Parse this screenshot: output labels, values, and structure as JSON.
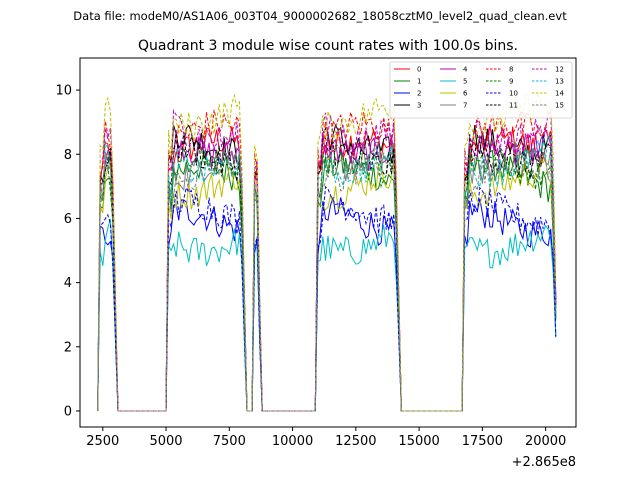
{
  "chart_data": {
    "type": "line",
    "suptitle": "Data file: modeM0/AS1A06_003T04_9000002682_18058cztM0_level2_quad_clean.evt",
    "title": "Quadrant 3 module wise count rates with 100.0s bins.",
    "xlabel": "",
    "ylabel": "",
    "offset_label": "+2.865e8",
    "xlim": [
      1600,
      21200
    ],
    "ylim": [
      -0.5,
      11.0
    ],
    "xticks": [
      2500,
      5000,
      7500,
      10000,
      12500,
      15000,
      17500,
      20000
    ],
    "xtick_labels": [
      "2500",
      "5000",
      "7500",
      "10000",
      "12500",
      "15000",
      "17500",
      "20000"
    ],
    "yticks": [
      0,
      2,
      4,
      6,
      8,
      10
    ],
    "ytick_labels": [
      "0",
      "2",
      "4",
      "6",
      "8",
      "10"
    ],
    "grid": false,
    "legend_position": "top-right",
    "segments": [
      {
        "start": 2400,
        "end": 3000
      },
      {
        "start": 5100,
        "end": 8100
      },
      {
        "start": 8500,
        "end": 8700
      },
      {
        "start": 11000,
        "end": 14200
      },
      {
        "start": 16800,
        "end": 20400
      }
    ],
    "series": [
      {
        "name": "0",
        "level": 8.1,
        "color": "#ff0000",
        "dash": "solid"
      },
      {
        "name": "1",
        "level": 7.3,
        "color": "#008000",
        "dash": "solid"
      },
      {
        "name": "2",
        "level": 5.9,
        "color": "#0000ff",
        "dash": "solid"
      },
      {
        "name": "3",
        "level": 8.4,
        "color": "#000000",
        "dash": "solid"
      },
      {
        "name": "4",
        "level": 8.3,
        "color": "#bf00bf",
        "dash": "solid"
      },
      {
        "name": "5",
        "level": 5.3,
        "color": "#00bfbf",
        "dash": "solid"
      },
      {
        "name": "6",
        "level": 7.1,
        "color": "#bfbf00",
        "dash": "solid"
      },
      {
        "name": "7",
        "level": 7.6,
        "color": "#7f7f7f",
        "dash": "solid"
      },
      {
        "name": "8",
        "level": 8.6,
        "color": "#ff0000",
        "dash": "dashed"
      },
      {
        "name": "9",
        "level": 7.5,
        "color": "#008000",
        "dash": "dashed"
      },
      {
        "name": "10",
        "level": 6.2,
        "color": "#0000ff",
        "dash": "dashed"
      },
      {
        "name": "11",
        "level": 8.0,
        "color": "#000000",
        "dash": "dashed"
      },
      {
        "name": "12",
        "level": 8.8,
        "color": "#bf00bf",
        "dash": "dashed"
      },
      {
        "name": "13",
        "level": 7.8,
        "color": "#00bfbf",
        "dash": "dashed"
      },
      {
        "name": "14",
        "level": 9.2,
        "color": "#bfbf00",
        "dash": "dashed"
      },
      {
        "name": "15",
        "level": 7.4,
        "color": "#7f7f7f",
        "dash": "dashed"
      }
    ]
  }
}
